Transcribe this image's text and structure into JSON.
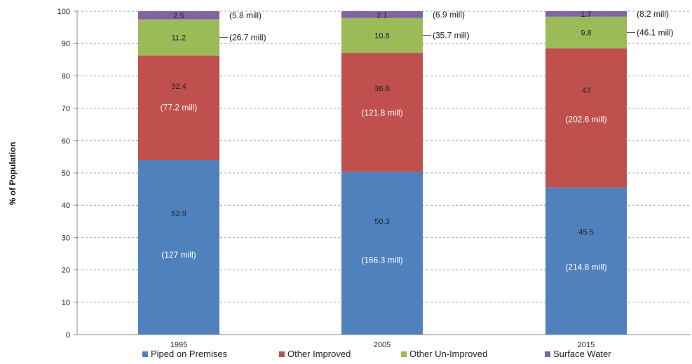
{
  "chart_data": {
    "type": "bar",
    "stacked": true,
    "ylabel": "% of Population",
    "xlabel": "",
    "ylim": [
      0,
      100
    ],
    "yticks": [
      0,
      10,
      20,
      30,
      40,
      50,
      60,
      70,
      80,
      90,
      100
    ],
    "categories": [
      "1995",
      "2005",
      "2015"
    ],
    "grid": true,
    "legend_position": "bottom",
    "series": [
      {
        "name": "Piped on Premises",
        "color": "#4f81bd",
        "values": [
          53.9,
          50.3,
          45.5
        ],
        "counts": [
          "(127 mill)",
          "(166.3 mill)",
          "(214.8 mill)"
        ]
      },
      {
        "name": "Other Improved",
        "color": "#c0504d",
        "values": [
          32.4,
          36.8,
          43
        ],
        "counts": [
          "(77.2 mill)",
          "(121.8 mill)",
          "(202.6 mill)"
        ]
      },
      {
        "name": "Other Un-Improved",
        "color": "#9bbb59",
        "values": [
          11.2,
          10.8,
          9.8
        ],
        "counts": [
          "(26.7 mill)",
          "(35.7 mill)",
          "(46.1 mill)"
        ]
      },
      {
        "name": "Surface Water",
        "color": "#8064a2",
        "values": [
          2.5,
          2.1,
          1.7
        ],
        "counts": [
          "(5.8 mill)",
          "(6.9 mill)",
          "(8.2 mill)"
        ]
      }
    ]
  }
}
